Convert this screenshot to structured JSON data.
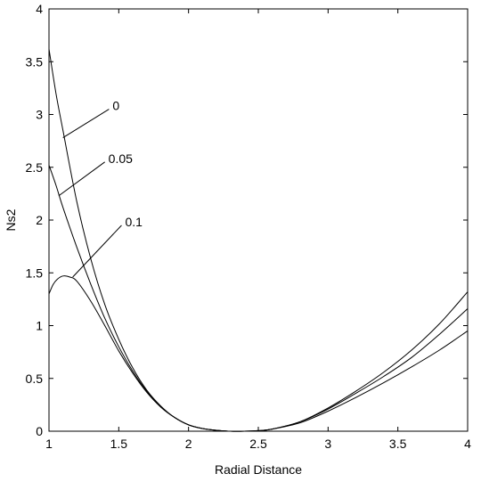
{
  "chart_data": {
    "type": "line",
    "title": "",
    "xlabel": "Radial Distance",
    "ylabel": "Ns2",
    "xlim": [
      1,
      4
    ],
    "ylim": [
      0,
      4
    ],
    "grid": false,
    "x_ticks": [
      1,
      1.5,
      2,
      2.5,
      3,
      3.5,
      4
    ],
    "x_tick_labels": [
      "1",
      "1.5",
      "2",
      "2.5",
      "3",
      "3.5",
      "4"
    ],
    "y_ticks": [
      0,
      0.5,
      1,
      1.5,
      2,
      2.5,
      3,
      3.5,
      4
    ],
    "y_tick_labels": [
      "0",
      "0.5",
      "1",
      "1.5",
      "2",
      "2.5",
      "3",
      "3.5",
      "4"
    ],
    "line_color": "#000000",
    "series": [
      {
        "name": "0",
        "x": [
          1.0,
          1.05,
          1.1,
          1.2,
          1.3,
          1.4,
          1.5,
          1.6,
          1.7,
          1.8,
          1.9,
          2.0,
          2.1,
          2.2,
          2.3,
          2.4,
          2.5,
          2.6,
          2.8,
          3.0,
          3.2,
          3.4,
          3.6,
          3.8,
          4.0
        ],
        "y": [
          3.62,
          3.2,
          2.85,
          2.17,
          1.63,
          1.2,
          0.87,
          0.6,
          0.39,
          0.24,
          0.13,
          0.06,
          0.025,
          0.008,
          0.0,
          0.0,
          0.005,
          0.02,
          0.09,
          0.22,
          0.38,
          0.56,
          0.77,
          1.02,
          1.32
        ]
      },
      {
        "name": "0.05",
        "x": [
          1.0,
          1.05,
          1.1,
          1.2,
          1.3,
          1.4,
          1.5,
          1.6,
          1.7,
          1.8,
          1.9,
          2.0,
          2.1,
          2.2,
          2.3,
          2.4,
          2.5,
          2.6,
          2.8,
          3.0,
          3.2,
          3.4,
          3.6,
          3.8,
          4.0
        ],
        "y": [
          2.52,
          2.33,
          2.12,
          1.74,
          1.39,
          1.07,
          0.8,
          0.57,
          0.38,
          0.23,
          0.13,
          0.06,
          0.025,
          0.008,
          0.0,
          0.0,
          0.005,
          0.02,
          0.09,
          0.21,
          0.36,
          0.52,
          0.7,
          0.92,
          1.16
        ]
      },
      {
        "name": "0.1",
        "x": [
          1.0,
          1.03,
          1.06,
          1.1,
          1.15,
          1.2,
          1.3,
          1.4,
          1.5,
          1.6,
          1.7,
          1.8,
          1.9,
          2.0,
          2.1,
          2.2,
          2.3,
          2.4,
          2.5,
          2.6,
          2.8,
          3.0,
          3.2,
          3.4,
          3.6,
          3.8,
          4.0
        ],
        "y": [
          1.3,
          1.39,
          1.44,
          1.47,
          1.46,
          1.42,
          1.23,
          1.0,
          0.76,
          0.55,
          0.37,
          0.23,
          0.13,
          0.06,
          0.025,
          0.008,
          0.0,
          0.0,
          0.005,
          0.02,
          0.08,
          0.19,
          0.32,
          0.46,
          0.61,
          0.77,
          0.95
        ]
      }
    ],
    "annotations": [
      {
        "text": "0",
        "target_series": "0",
        "anchor_x": 1.1,
        "anchor_y": 2.78,
        "label_x": 1.43,
        "label_y": 3.05
      },
      {
        "text": "0.05",
        "target_series": "0.05",
        "anchor_x": 1.07,
        "anchor_y": 2.23,
        "label_x": 1.4,
        "label_y": 2.55
      },
      {
        "text": "0.1",
        "target_series": "0.1",
        "anchor_x": 1.17,
        "anchor_y": 1.46,
        "label_x": 1.52,
        "label_y": 1.95
      }
    ]
  }
}
